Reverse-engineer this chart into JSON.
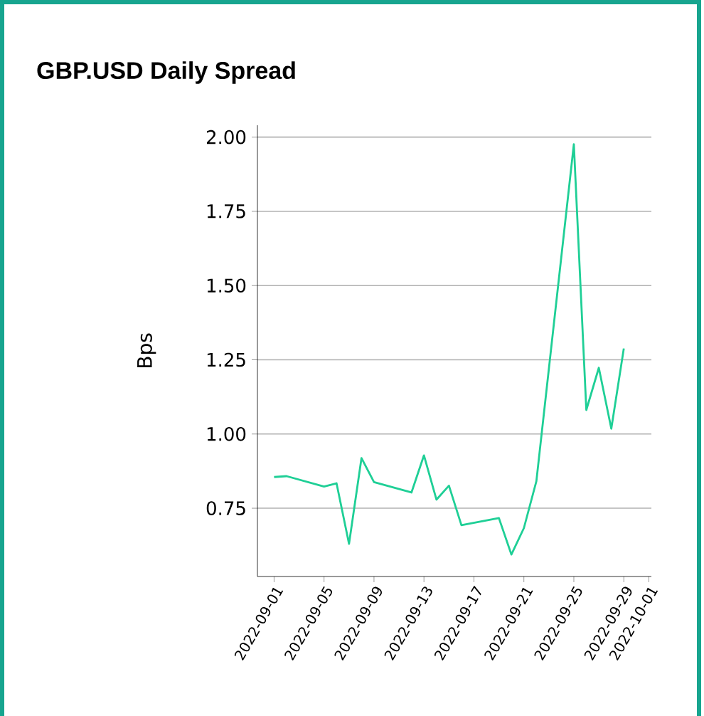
{
  "chart_data": {
    "type": "line",
    "title": "GBP.USD Daily Spread",
    "ylabel": "Bps",
    "x": [
      "2022-09-01",
      "2022-09-02",
      "2022-09-05",
      "2022-09-06",
      "2022-09-07",
      "2022-09-08",
      "2022-09-09",
      "2022-09-12",
      "2022-09-13",
      "2022-09-14",
      "2022-09-15",
      "2022-09-16",
      "2022-09-19",
      "2022-09-20",
      "2022-09-21",
      "2022-09-22",
      "2022-09-25",
      "2022-09-26",
      "2022-09-27",
      "2022-09-28",
      "2022-09-29"
    ],
    "series": [
      {
        "color": "#1fcf96",
        "values": [
          0.855,
          0.858,
          0.823,
          0.834,
          0.63,
          0.919,
          0.838,
          0.803,
          0.928,
          0.779,
          0.826,
          0.693,
          0.717,
          0.594,
          0.683,
          0.841,
          1.976,
          1.081,
          1.223,
          1.018,
          1.288
        ]
      }
    ],
    "xlim": [
      "2022-08-30T16:00",
      "2022-10-01T05:00"
    ],
    "ylim": [
      0.52,
      2.04
    ],
    "xticks": [
      "2022-09-01",
      "2022-09-05",
      "2022-09-09",
      "2022-09-13",
      "2022-09-17",
      "2022-09-21",
      "2022-09-25",
      "2022-09-29",
      "2022-10-01"
    ],
    "yticks": [
      0.75,
      {
        "value": 1.0,
        "label": "1.00"
      },
      1.25,
      {
        "value": 1.5,
        "label": "1.50"
      },
      1.75,
      {
        "value": 2.0,
        "label": "2.00"
      }
    ],
    "grid": "y",
    "marker": "none",
    "line_style": "solid"
  }
}
